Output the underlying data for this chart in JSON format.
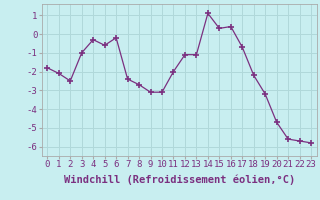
{
  "x": [
    0,
    1,
    2,
    3,
    4,
    5,
    6,
    7,
    8,
    9,
    10,
    11,
    12,
    13,
    14,
    15,
    16,
    17,
    18,
    19,
    20,
    21,
    22,
    23
  ],
  "y": [
    -1.8,
    -2.1,
    -2.5,
    -1.0,
    -0.3,
    -0.6,
    -0.2,
    -2.4,
    -2.7,
    -3.1,
    -3.1,
    -2.0,
    -1.1,
    -1.1,
    1.1,
    0.3,
    0.4,
    -0.7,
    -2.2,
    -3.2,
    -4.7,
    -5.6,
    -5.7,
    -5.8
  ],
  "line_color": "#7b3080",
  "marker": "+",
  "marker_size": 5,
  "marker_lw": 1.2,
  "bg_color": "#c8eef0",
  "grid_color": "#b0d8da",
  "xlabel": "Windchill (Refroidissement éolien,°C)",
  "xticks": [
    0,
    1,
    2,
    3,
    4,
    5,
    6,
    7,
    8,
    9,
    10,
    11,
    12,
    13,
    14,
    15,
    16,
    17,
    18,
    19,
    20,
    21,
    22,
    23
  ],
  "yticks": [
    -6,
    -5,
    -4,
    -3,
    -2,
    -1,
    0,
    1
  ],
  "ylim": [
    -6.5,
    1.6
  ],
  "xlim": [
    -0.5,
    23.5
  ],
  "tick_fontsize": 6.5,
  "xlabel_fontsize": 7.5,
  "spine_color": "#aaaaaa",
  "tick_color": "#7b3080"
}
